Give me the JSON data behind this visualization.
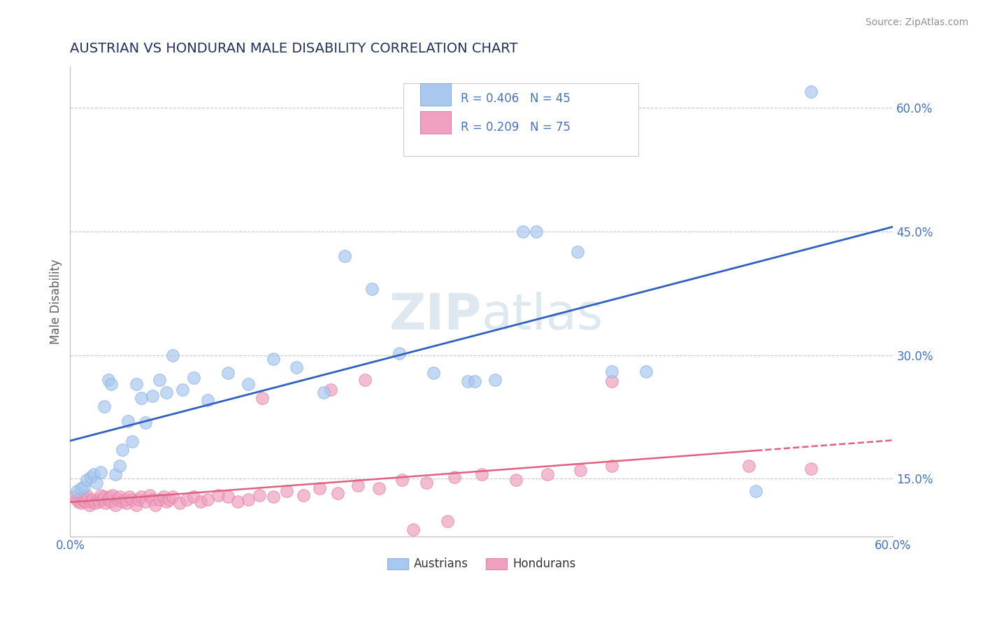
{
  "title": "AUSTRIAN VS HONDURAN MALE DISABILITY CORRELATION CHART",
  "source": "Source: ZipAtlas.com",
  "ylabel": "Male Disability",
  "xlim": [
    0.0,
    0.6
  ],
  "ylim": [
    0.08,
    0.65
  ],
  "xticks": [
    0.0,
    0.1,
    0.2,
    0.3,
    0.4,
    0.5,
    0.6
  ],
  "xticklabels": [
    "0.0%",
    "",
    "",
    "",
    "",
    "",
    "60.0%"
  ],
  "ytick_positions": [
    0.15,
    0.3,
    0.45,
    0.6
  ],
  "ytick_labels": [
    "15.0%",
    "30.0%",
    "45.0%",
    "60.0%"
  ],
  "austrians_R": 0.406,
  "austrians_N": 45,
  "hondurans_R": 0.209,
  "hondurans_N": 75,
  "austrians_color": "#a8c8f0",
  "hondurans_color": "#f0a0c0",
  "austrians_edge_color": "#8ab0e0",
  "hondurans_edge_color": "#e080a0",
  "trendline_austrians_color": "#3060c0",
  "trendline_hondurans_color": "#e06080",
  "background_color": "#ffffff",
  "watermark_color": "#dde8f0",
  "grid_color": "#c8c8c8",
  "title_color": "#203060",
  "tick_color": "#4472c4",
  "ylabel_color": "#606060",
  "source_color": "#909090",
  "austrians_x": [
    0.005,
    0.008,
    0.01,
    0.012,
    0.015,
    0.017,
    0.019,
    0.022,
    0.025,
    0.028,
    0.03,
    0.033,
    0.036,
    0.038,
    0.042,
    0.045,
    0.048,
    0.052,
    0.055,
    0.06,
    0.065,
    0.07,
    0.075,
    0.082,
    0.09,
    0.1,
    0.115,
    0.13,
    0.148,
    0.165,
    0.185,
    0.2,
    0.22,
    0.24,
    0.265,
    0.29,
    0.31,
    0.34,
    0.37,
    0.395,
    0.42,
    0.5,
    0.54,
    0.295,
    0.33
  ],
  "austrians_y": [
    0.135,
    0.138,
    0.14,
    0.148,
    0.152,
    0.155,
    0.145,
    0.158,
    0.238,
    0.27,
    0.265,
    0.155,
    0.165,
    0.185,
    0.22,
    0.195,
    0.265,
    0.248,
    0.218,
    0.25,
    0.27,
    0.255,
    0.3,
    0.258,
    0.272,
    0.245,
    0.278,
    0.265,
    0.295,
    0.285,
    0.255,
    0.42,
    0.38,
    0.302,
    0.278,
    0.268,
    0.27,
    0.45,
    0.425,
    0.28,
    0.28,
    0.135,
    0.62,
    0.268,
    0.45
  ],
  "hondurans_x": [
    0.003,
    0.005,
    0.006,
    0.008,
    0.009,
    0.01,
    0.011,
    0.012,
    0.014,
    0.015,
    0.016,
    0.018,
    0.02,
    0.021,
    0.022,
    0.024,
    0.025,
    0.026,
    0.028,
    0.029,
    0.03,
    0.031,
    0.033,
    0.035,
    0.036,
    0.038,
    0.04,
    0.041,
    0.043,
    0.045,
    0.048,
    0.05,
    0.052,
    0.055,
    0.058,
    0.06,
    0.062,
    0.065,
    0.068,
    0.07,
    0.072,
    0.075,
    0.08,
    0.085,
    0.09,
    0.095,
    0.1,
    0.108,
    0.115,
    0.122,
    0.13,
    0.138,
    0.148,
    0.158,
    0.17,
    0.182,
    0.195,
    0.21,
    0.225,
    0.242,
    0.26,
    0.28,
    0.3,
    0.325,
    0.348,
    0.372,
    0.395,
    0.54,
    0.25,
    0.275,
    0.395,
    0.19,
    0.215,
    0.495,
    0.14
  ],
  "hondurans_y": [
    0.128,
    0.125,
    0.122,
    0.12,
    0.125,
    0.128,
    0.122,
    0.13,
    0.118,
    0.122,
    0.125,
    0.12,
    0.125,
    0.122,
    0.13,
    0.125,
    0.128,
    0.12,
    0.125,
    0.128,
    0.122,
    0.13,
    0.118,
    0.125,
    0.128,
    0.122,
    0.125,
    0.12,
    0.128,
    0.125,
    0.118,
    0.125,
    0.128,
    0.122,
    0.13,
    0.125,
    0.118,
    0.125,
    0.128,
    0.122,
    0.125,
    0.128,
    0.12,
    0.125,
    0.128,
    0.122,
    0.125,
    0.13,
    0.128,
    0.122,
    0.125,
    0.13,
    0.128,
    0.135,
    0.13,
    0.138,
    0.132,
    0.142,
    0.138,
    0.148,
    0.145,
    0.152,
    0.155,
    0.148,
    0.155,
    0.16,
    0.165,
    0.162,
    0.088,
    0.098,
    0.268,
    0.258,
    0.27,
    0.165,
    0.248
  ]
}
